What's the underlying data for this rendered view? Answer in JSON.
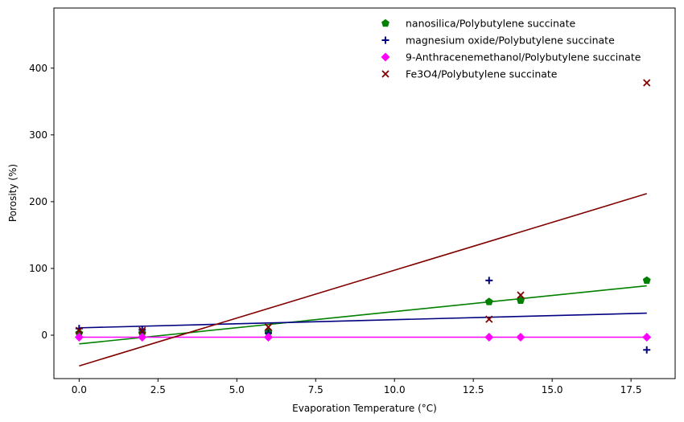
{
  "chart_data": {
    "type": "scatter",
    "title": "",
    "xlabel": "Evaporation Temperature (°C)",
    "ylabel": "Porosity (%)",
    "xlim": [
      -0.8,
      18.9
    ],
    "ylim": [
      -65,
      490
    ],
    "x_ticks": [
      0.0,
      2.5,
      5.0,
      7.5,
      10.0,
      12.5,
      15.0,
      17.5
    ],
    "x_tick_labels": [
      "0.0",
      "2.5",
      "5.0",
      "7.5",
      "10.0",
      "12.5",
      "15.0",
      "17.5"
    ],
    "y_ticks": [
      0,
      100,
      200,
      300,
      400
    ],
    "y_tick_labels": [
      "0",
      "100",
      "200",
      "300",
      "400"
    ],
    "grid": false,
    "legend_position": "top-right",
    "series": [
      {
        "name": "nanosilica/Polybutylene succinate",
        "marker": "pentagon",
        "color": "#008000",
        "x": [
          0,
          2,
          6,
          13,
          14,
          18
        ],
        "y": [
          3,
          3,
          5,
          50,
          52,
          82
        ],
        "fit": [
          [
            0,
            -13
          ],
          [
            18,
            74
          ]
        ]
      },
      {
        "name": "magnesium oxide/Polybutylene succinate",
        "marker": "plus",
        "color": "#000080",
        "x": [
          0,
          2,
          6,
          13,
          18
        ],
        "y": [
          10,
          8,
          3,
          82,
          -22
        ],
        "fit": [
          [
            0,
            11
          ],
          [
            18,
            33
          ]
        ]
      },
      {
        "name": "9-Anthracenemethanol/Polybutylene succinate",
        "marker": "diamond",
        "color": "#ff00ff",
        "x": [
          0,
          2,
          6,
          13,
          14,
          18
        ],
        "y": [
          -3,
          -3,
          -3,
          -3,
          -3,
          -3
        ],
        "fit": [
          [
            0,
            -3
          ],
          [
            18,
            -3
          ]
        ]
      },
      {
        "name": "Fe3O4/Polybutylene succinate",
        "marker": "x",
        "color": "#800000",
        "x": [
          0,
          2,
          6,
          13,
          14,
          18
        ],
        "y": [
          7,
          7,
          12,
          24,
          60,
          378
        ],
        "fit": [
          [
            0,
            -46
          ],
          [
            18,
            212
          ]
        ]
      }
    ]
  }
}
